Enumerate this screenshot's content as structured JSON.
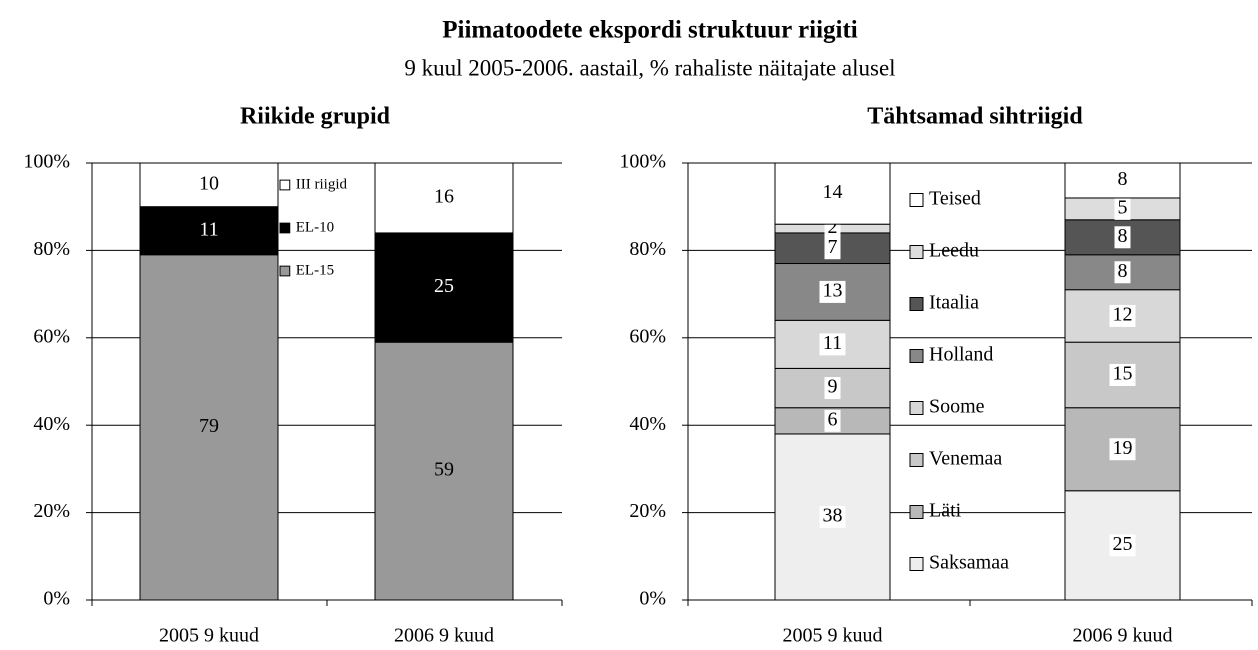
{
  "title": "Piimatoodete ekspordi struktuur riigiti",
  "subtitle": "9 kuul 2005-2006. aastail, % rahaliste näitajate alusel",
  "chart_data": [
    {
      "type": "bar",
      "stacked": true,
      "title": "Riikide grupid",
      "categories": [
        "2005 9 kuud",
        "2006 9 kuud"
      ],
      "series": [
        {
          "name": "EL-15",
          "color": "#999999",
          "values": [
            79,
            59
          ]
        },
        {
          "name": "EL-10",
          "color": "#000000",
          "values": [
            11,
            25
          ]
        },
        {
          "name": "III riigid",
          "color": "#ffffff",
          "values": [
            10,
            16
          ]
        }
      ],
      "ylim": [
        0,
        100
      ],
      "yticks": [
        {
          "value": 0,
          "label": "0%"
        },
        {
          "value": 20,
          "label": "20%"
        },
        {
          "value": 40,
          "label": "40%"
        },
        {
          "value": 60,
          "label": "60%"
        },
        {
          "value": 80,
          "label": "80%"
        },
        {
          "value": 100,
          "label": "100%"
        }
      ],
      "grid": true
    },
    {
      "type": "bar",
      "stacked": true,
      "title": "Tähtsamad sihtriigid",
      "categories": [
        "2005 9 kuud",
        "2006 9 kuud"
      ],
      "series": [
        {
          "name": "Saksamaa",
          "color": "#eeeeee",
          "values": [
            38,
            25
          ]
        },
        {
          "name": "Läti",
          "color": "#b8b8b8",
          "values": [
            6,
            19
          ]
        },
        {
          "name": "Venemaa",
          "color": "#c8c8c8",
          "values": [
            9,
            15
          ]
        },
        {
          "name": "Soome",
          "color": "#d8d8d8",
          "values": [
            11,
            12
          ]
        },
        {
          "name": "Holland",
          "color": "#888888",
          "values": [
            13,
            8
          ]
        },
        {
          "name": "Itaalia",
          "color": "#555555",
          "values": [
            7,
            8
          ]
        },
        {
          "name": "Leedu",
          "color": "#dddddd",
          "values": [
            2,
            5
          ]
        },
        {
          "name": "Teised",
          "color": "#ffffff",
          "values": [
            14,
            8
          ]
        }
      ],
      "ylim": [
        0,
        100
      ],
      "yticks": [
        {
          "value": 0,
          "label": "0%"
        },
        {
          "value": 20,
          "label": "20%"
        },
        {
          "value": 40,
          "label": "40%"
        },
        {
          "value": 60,
          "label": "60%"
        },
        {
          "value": 80,
          "label": "80%"
        },
        {
          "value": 100,
          "label": "100%"
        }
      ],
      "grid": true
    }
  ]
}
